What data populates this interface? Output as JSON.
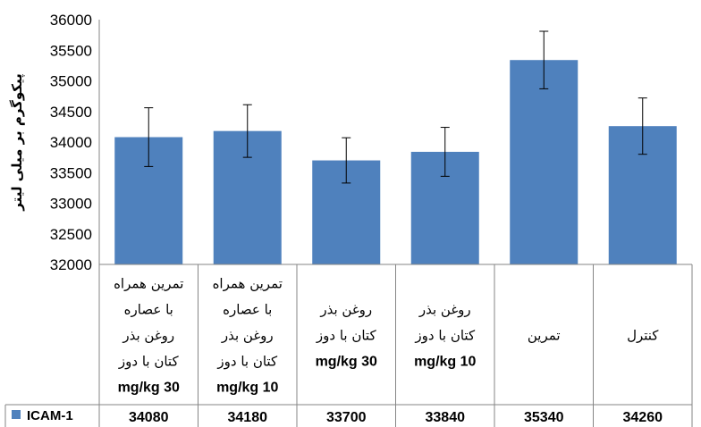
{
  "chart_data": {
    "type": "bar",
    "ylabel": "پیکوگرم بر میلی لیتر",
    "ylim": [
      32000,
      36000
    ],
    "ytick_step": 500,
    "yticks": [
      "32000",
      "32500",
      "33000",
      "33500",
      "34000",
      "34500",
      "35000",
      "35500",
      "36000"
    ],
    "grid": false,
    "legend_position": "table-left",
    "categories": [
      [
        "تمرین همراه",
        "با عصاره",
        "روغن بذر",
        "کتان با دوز",
        "30 mg/kg"
      ],
      [
        "تمرین همراه",
        "با عصاره",
        "روغن بذر",
        "کتان با دوز",
        "10 mg/kg"
      ],
      [
        "روغن بذر",
        "کتان با دوز",
        "30 mg/kg"
      ],
      [
        "روغن بذر",
        "کتان با دوز",
        "10 mg/kg"
      ],
      [
        "تمرین"
      ],
      [
        "کنترل"
      ]
    ],
    "series": [
      {
        "name": "ICAM-1",
        "color": "#4f81bd",
        "values": [
          34080,
          34180,
          33700,
          33840,
          35340,
          34260
        ],
        "value_labels": [
          "34080",
          "34180",
          "33700",
          "33840",
          "35340",
          "34260"
        ],
        "errors": [
          480,
          430,
          370,
          400,
          470,
          460
        ]
      }
    ]
  }
}
